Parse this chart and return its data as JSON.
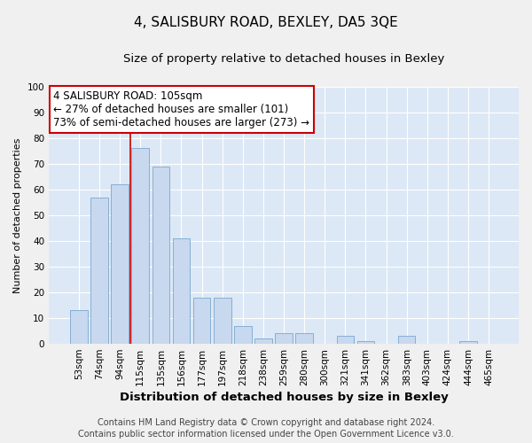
{
  "title": "4, SALISBURY ROAD, BEXLEY, DA5 3QE",
  "subtitle": "Size of property relative to detached houses in Bexley",
  "xlabel": "Distribution of detached houses by size in Bexley",
  "ylabel": "Number of detached properties",
  "bar_labels": [
    "53sqm",
    "74sqm",
    "94sqm",
    "115sqm",
    "135sqm",
    "156sqm",
    "177sqm",
    "197sqm",
    "218sqm",
    "238sqm",
    "259sqm",
    "280sqm",
    "300sqm",
    "321sqm",
    "341sqm",
    "362sqm",
    "383sqm",
    "403sqm",
    "424sqm",
    "444sqm",
    "465sqm"
  ],
  "bar_values": [
    13,
    57,
    62,
    76,
    69,
    41,
    18,
    18,
    7,
    2,
    4,
    4,
    0,
    3,
    1,
    0,
    3,
    0,
    0,
    1,
    0
  ],
  "bar_color": "#c8d8ee",
  "bar_edge_color": "#7aa8d0",
  "vline_color": "#cc0000",
  "ylim": [
    0,
    100
  ],
  "yticks": [
    0,
    10,
    20,
    30,
    40,
    50,
    60,
    70,
    80,
    90,
    100
  ],
  "annotation_line1": "4 SALISBURY ROAD: 105sqm",
  "annotation_line2": "← 27% of detached houses are smaller (101)",
  "annotation_line3": "73% of semi-detached houses are larger (273) →",
  "annotation_box_facecolor": "#ffffff",
  "annotation_box_edgecolor": "#cc0000",
  "footer_line1": "Contains HM Land Registry data © Crown copyright and database right 2024.",
  "footer_line2": "Contains public sector information licensed under the Open Government Licence v3.0.",
  "plot_bg_color": "#dce8f5",
  "fig_bg_color": "#f0f0f0",
  "grid_color": "#ffffff",
  "title_fontsize": 11,
  "subtitle_fontsize": 9.5,
  "xlabel_fontsize": 9.5,
  "ylabel_fontsize": 8,
  "tick_fontsize": 7.5,
  "annotation_fontsize": 8.5,
  "footer_fontsize": 7
}
